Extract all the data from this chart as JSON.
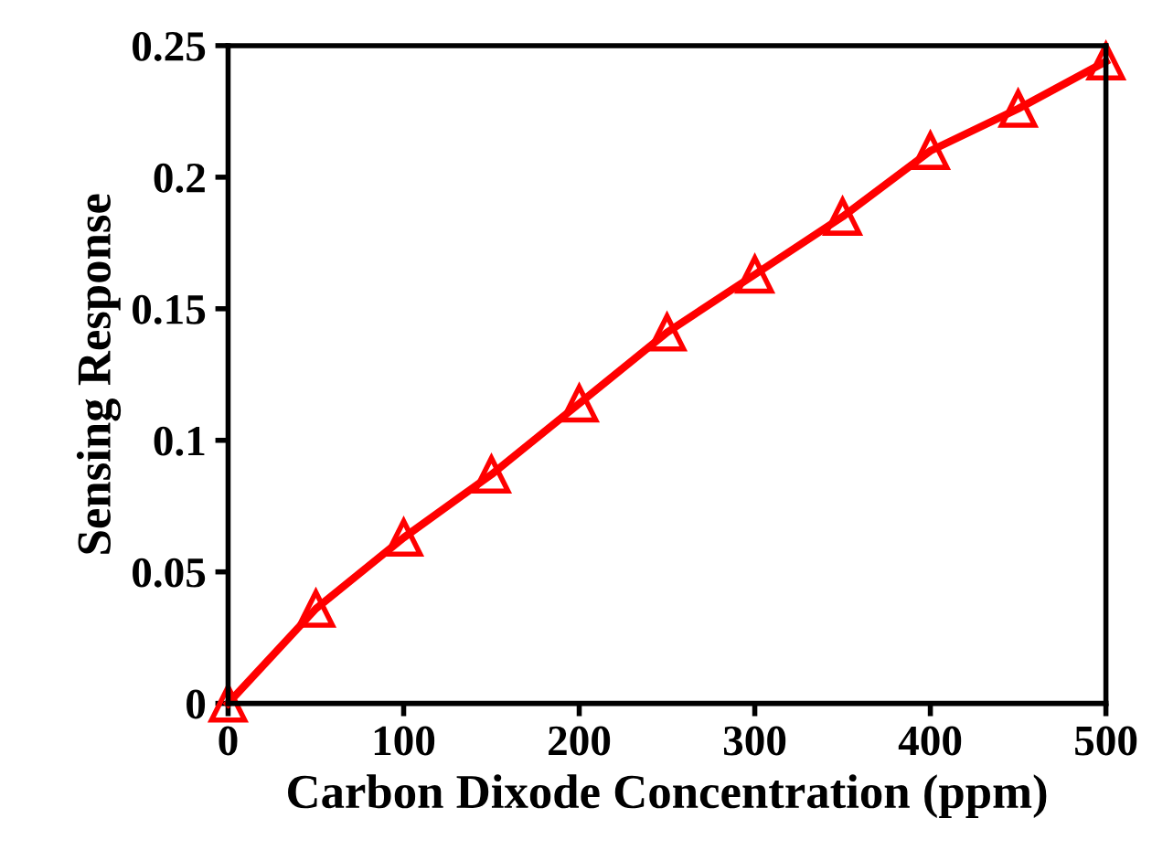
{
  "chart_data": {
    "type": "line",
    "xlabel": "Carbon Dixode Concentration (ppm)",
    "ylabel": "Sensing Response",
    "x": [
      0,
      50,
      100,
      150,
      200,
      250,
      300,
      350,
      400,
      450,
      500
    ],
    "series": [
      {
        "color": "#ff0000",
        "values": [
          0,
          0.036,
          0.063,
          0.087,
          0.114,
          0.141,
          0.163,
          0.185,
          0.21,
          0.226,
          0.244
        ]
      }
    ],
    "xlim": [
      0,
      500
    ],
    "ylim": [
      0,
      0.25
    ],
    "xticks": [
      0,
      100,
      200,
      300,
      400,
      500
    ],
    "yticks": [
      0,
      0.05,
      0.1,
      0.15,
      0.2,
      0.25
    ],
    "marker": "triangle",
    "line_style": "solid",
    "grid": false,
    "legend": false
  }
}
